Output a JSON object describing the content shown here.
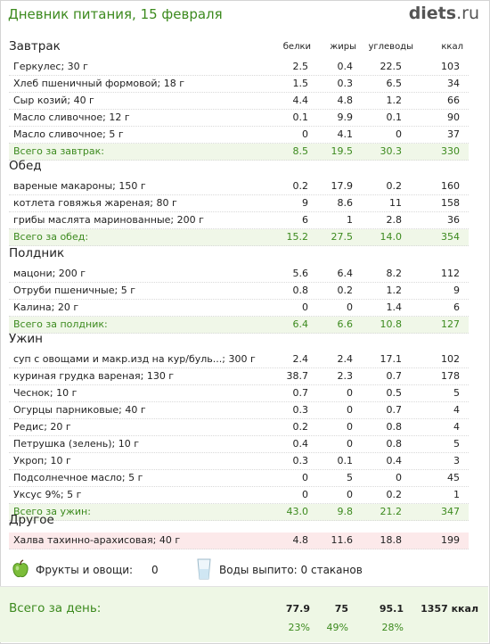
{
  "header": {
    "title": "Дневник питания, 15 февраля",
    "logo_main": "diets",
    "logo_suffix": ".ru"
  },
  "columns": [
    "белки",
    "жиры",
    "углеводы",
    "ккал"
  ],
  "sections": [
    {
      "title": "Завтрак",
      "rows": [
        [
          "Геркулес; 30 г",
          "2.5",
          "0.4",
          "22.5",
          "103"
        ],
        [
          "Хлеб пшеничный формовой; 18 г",
          "1.5",
          "0.3",
          "6.5",
          "34"
        ],
        [
          "Сыр козий; 40 г",
          "4.4",
          "4.8",
          "1.2",
          "66"
        ],
        [
          "Масло сливочное; 12 г",
          "0.1",
          "9.9",
          "0.1",
          "90"
        ],
        [
          "Масло сливочное; 5 г",
          "0",
          "4.1",
          "0",
          "37"
        ]
      ],
      "total": [
        "Всего за завтрак:",
        "8.5",
        "19.5",
        "30.3",
        "330"
      ]
    },
    {
      "title": "Обед",
      "rows": [
        [
          "вареные макароны; 150 г",
          "0.2",
          "17.9",
          "0.2",
          "160"
        ],
        [
          "котлета говяжья жареная; 80 г",
          "9",
          "8.6",
          "11",
          "158"
        ],
        [
          "грибы маслята маринованные; 200 г",
          "6",
          "1",
          "2.8",
          "36"
        ]
      ],
      "total": [
        "Всего за обед:",
        "15.2",
        "27.5",
        "14.0",
        "354"
      ]
    },
    {
      "title": "Полдник",
      "rows": [
        [
          "мацони; 200 г",
          "5.6",
          "6.4",
          "8.2",
          "112"
        ],
        [
          "Отруби пшеничные; 5 г",
          "0.8",
          "0.2",
          "1.2",
          "9"
        ],
        [
          "Калина; 20 г",
          "0",
          "0",
          "1.4",
          "6"
        ]
      ],
      "total": [
        "Всего за полдник:",
        "6.4",
        "6.6",
        "10.8",
        "127"
      ]
    },
    {
      "title": "Ужин",
      "rows": [
        [
          "суп с овощами и макр.изд на кур/буль...; 300 г",
          "2.4",
          "2.4",
          "17.1",
          "102"
        ],
        [
          "куриная грудка вареная; 130 г",
          "38.7",
          "2.3",
          "0.7",
          "178"
        ],
        [
          "Чеснок; 10 г",
          "0.7",
          "0",
          "0.5",
          "5"
        ],
        [
          "Огурцы парниковые; 40 г",
          "0.3",
          "0",
          "0.7",
          "4"
        ],
        [
          "Редис; 20 г",
          "0.2",
          "0",
          "0.8",
          "4"
        ],
        [
          "Петрушка (зелень); 10 г",
          "0.4",
          "0",
          "0.8",
          "5"
        ],
        [
          "Укроп; 10 г",
          "0.3",
          "0.1",
          "0.4",
          "3"
        ],
        [
          "Подсолнечное масло; 5 г",
          "0",
          "5",
          "0",
          "45"
        ],
        [
          "Уксус 9%; 5 г",
          "0",
          "0",
          "0.2",
          "1"
        ]
      ],
      "total": [
        "Всего за ужин:",
        "43.0",
        "9.8",
        "21.2",
        "347"
      ]
    },
    {
      "title": "Другое",
      "rows": [
        [
          "Халва тахинно-арахисовая; 40 г",
          "4.8",
          "11.6",
          "18.8",
          "199"
        ]
      ],
      "total": null
    }
  ],
  "extras": {
    "fruits_label": "Фрукты и овощи:",
    "fruits_value": "0",
    "water_label": "Воды выпито: 0 стаканов"
  },
  "day_total": {
    "label": "Всего за день:",
    "protein": "77.9",
    "fat": "75",
    "carbs": "95.1",
    "kcal": "1357 ккал",
    "protein_pct": "23%",
    "fat_pct": "49%",
    "carbs_pct": "28%"
  }
}
